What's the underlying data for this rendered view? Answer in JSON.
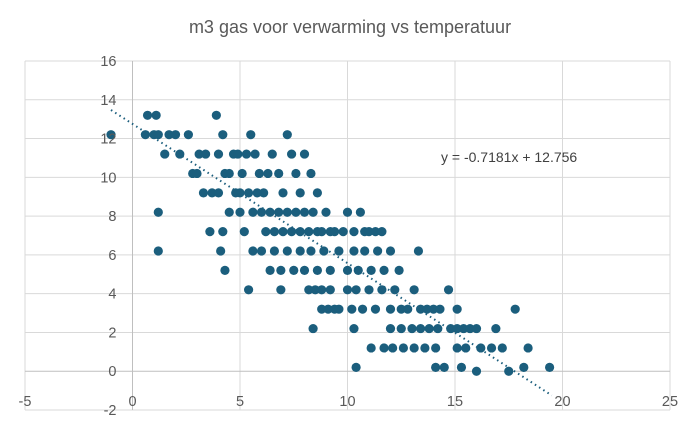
{
  "chart_data": {
    "type": "scatter",
    "title": "m3 gas voor verwarming vs temperatuur",
    "xlabel": "",
    "ylabel": "",
    "xlim": [
      -5,
      25
    ],
    "ylim": [
      -2,
      16
    ],
    "x_ticks": [
      -5,
      0,
      5,
      10,
      15,
      20,
      25
    ],
    "y_ticks": [
      -2,
      0,
      2,
      4,
      6,
      8,
      10,
      12,
      14,
      16
    ],
    "grid": true,
    "series": [
      {
        "name": "m3 gas",
        "color": "#1b5e7d",
        "points": [
          [
            -1.0,
            12.2
          ],
          [
            0.6,
            12.2
          ],
          [
            0.7,
            13.2
          ],
          [
            1.1,
            13.2
          ],
          [
            1.0,
            12.2
          ],
          [
            1.2,
            12.2
          ],
          [
            1.5,
            11.2
          ],
          [
            1.7,
            12.2
          ],
          [
            2.0,
            12.2
          ],
          [
            2.2,
            11.2
          ],
          [
            2.6,
            12.2
          ],
          [
            2.8,
            10.2
          ],
          [
            3.0,
            10.2
          ],
          [
            3.1,
            11.2
          ],
          [
            3.4,
            11.2
          ],
          [
            3.7,
            9.2
          ],
          [
            3.9,
            13.2
          ],
          [
            4.0,
            11.2
          ],
          [
            4.2,
            12.2
          ],
          [
            4.3,
            10.2
          ],
          [
            4.5,
            10.2
          ],
          [
            4.7,
            11.2
          ],
          [
            4.9,
            11.2
          ],
          [
            5.0,
            9.2
          ],
          [
            5.1,
            10.2
          ],
          [
            5.3,
            11.2
          ],
          [
            5.5,
            12.2
          ],
          [
            5.7,
            11.2
          ],
          [
            5.9,
            10.2
          ],
          [
            6.1,
            9.2
          ],
          [
            6.3,
            10.2
          ],
          [
            6.5,
            11.2
          ],
          [
            6.8,
            10.2
          ],
          [
            7.0,
            9.2
          ],
          [
            7.2,
            12.2
          ],
          [
            7.4,
            11.2
          ],
          [
            7.6,
            10.2
          ],
          [
            7.8,
            9.2
          ],
          [
            8.0,
            11.2
          ],
          [
            8.3,
            10.2
          ],
          [
            8.6,
            9.2
          ],
          [
            3.3,
            9.2
          ],
          [
            3.6,
            7.2
          ],
          [
            4.0,
            9.2
          ],
          [
            4.2,
            7.2
          ],
          [
            4.5,
            8.2
          ],
          [
            4.8,
            9.2
          ],
          [
            5.0,
            8.2
          ],
          [
            5.2,
            7.2
          ],
          [
            5.4,
            9.2
          ],
          [
            5.6,
            8.2
          ],
          [
            5.8,
            9.2
          ],
          [
            6.0,
            8.2
          ],
          [
            6.2,
            7.2
          ],
          [
            6.4,
            8.2
          ],
          [
            6.6,
            7.2
          ],
          [
            6.8,
            8.2
          ],
          [
            7.0,
            7.2
          ],
          [
            7.2,
            8.2
          ],
          [
            7.4,
            7.2
          ],
          [
            7.6,
            8.2
          ],
          [
            7.8,
            7.2
          ],
          [
            8.0,
            8.2
          ],
          [
            8.2,
            7.2
          ],
          [
            8.4,
            8.2
          ],
          [
            8.6,
            7.2
          ],
          [
            8.8,
            7.2
          ],
          [
            9.0,
            8.2
          ],
          [
            9.2,
            7.2
          ],
          [
            9.4,
            7.2
          ],
          [
            9.8,
            7.2
          ],
          [
            10.0,
            8.2
          ],
          [
            10.3,
            7.2
          ],
          [
            10.6,
            8.2
          ],
          [
            10.8,
            7.2
          ],
          [
            11.0,
            7.2
          ],
          [
            11.3,
            7.2
          ],
          [
            11.6,
            7.2
          ],
          [
            1.2,
            8.2
          ],
          [
            1.2,
            6.2
          ],
          [
            4.1,
            6.2
          ],
          [
            4.3,
            5.2
          ],
          [
            5.6,
            6.2
          ],
          [
            6.0,
            6.2
          ],
          [
            6.4,
            5.2
          ],
          [
            6.6,
            6.2
          ],
          [
            6.9,
            5.2
          ],
          [
            7.2,
            6.2
          ],
          [
            7.5,
            5.2
          ],
          [
            7.8,
            6.2
          ],
          [
            8.0,
            5.2
          ],
          [
            8.3,
            6.2
          ],
          [
            8.6,
            5.2
          ],
          [
            8.9,
            6.2
          ],
          [
            9.2,
            5.2
          ],
          [
            9.6,
            6.2
          ],
          [
            10.0,
            5.2
          ],
          [
            10.3,
            6.2
          ],
          [
            10.5,
            5.2
          ],
          [
            10.8,
            6.2
          ],
          [
            11.1,
            5.2
          ],
          [
            11.4,
            6.2
          ],
          [
            11.7,
            5.2
          ],
          [
            12.0,
            6.2
          ],
          [
            12.4,
            5.2
          ],
          [
            13.3,
            6.2
          ],
          [
            5.4,
            4.2
          ],
          [
            6.9,
            4.2
          ],
          [
            8.2,
            4.2
          ],
          [
            8.5,
            4.2
          ],
          [
            8.8,
            4.2
          ],
          [
            9.2,
            4.2
          ],
          [
            9.6,
            3.2
          ],
          [
            10.0,
            4.2
          ],
          [
            10.2,
            3.2
          ],
          [
            10.4,
            4.2
          ],
          [
            10.7,
            3.2
          ],
          [
            11.0,
            4.2
          ],
          [
            11.3,
            3.2
          ],
          [
            11.6,
            4.2
          ],
          [
            12.0,
            3.2
          ],
          [
            12.2,
            4.2
          ],
          [
            12.5,
            3.2
          ],
          [
            12.8,
            3.2
          ],
          [
            13.1,
            4.2
          ],
          [
            13.4,
            3.2
          ],
          [
            13.7,
            3.2
          ],
          [
            14.0,
            3.2
          ],
          [
            14.3,
            3.2
          ],
          [
            14.7,
            4.2
          ],
          [
            15.1,
            3.2
          ],
          [
            8.8,
            3.2
          ],
          [
            9.1,
            3.2
          ],
          [
            9.4,
            3.2
          ],
          [
            17.8,
            3.2
          ],
          [
            8.4,
            2.2
          ],
          [
            10.3,
            2.2
          ],
          [
            12.0,
            2.2
          ],
          [
            12.5,
            2.2
          ],
          [
            13.0,
            2.2
          ],
          [
            13.4,
            2.2
          ],
          [
            13.8,
            2.2
          ],
          [
            14.2,
            2.2
          ],
          [
            14.8,
            2.2
          ],
          [
            15.1,
            2.2
          ],
          [
            15.4,
            2.2
          ],
          [
            15.7,
            2.2
          ],
          [
            16.0,
            2.2
          ],
          [
            16.9,
            2.2
          ],
          [
            11.1,
            1.2
          ],
          [
            11.7,
            1.2
          ],
          [
            12.1,
            1.2
          ],
          [
            12.6,
            1.2
          ],
          [
            13.1,
            1.2
          ],
          [
            13.6,
            1.2
          ],
          [
            14.1,
            1.2
          ],
          [
            15.1,
            1.2
          ],
          [
            15.5,
            1.2
          ],
          [
            16.2,
            1.2
          ],
          [
            16.7,
            1.2
          ],
          [
            17.2,
            1.2
          ],
          [
            18.4,
            1.2
          ],
          [
            10.4,
            0.2
          ],
          [
            14.1,
            0.2
          ],
          [
            14.5,
            0.2
          ],
          [
            15.3,
            0.2
          ],
          [
            16.0,
            0.0
          ],
          [
            17.5,
            0.0
          ],
          [
            18.2,
            0.2
          ],
          [
            19.4,
            0.2
          ]
        ]
      }
    ],
    "trendline": {
      "type": "linear",
      "slope": -0.7181,
      "intercept": 12.756,
      "x_range": [
        -1.0,
        19.5
      ],
      "label": "y = -0.7181x + 12.756"
    }
  }
}
